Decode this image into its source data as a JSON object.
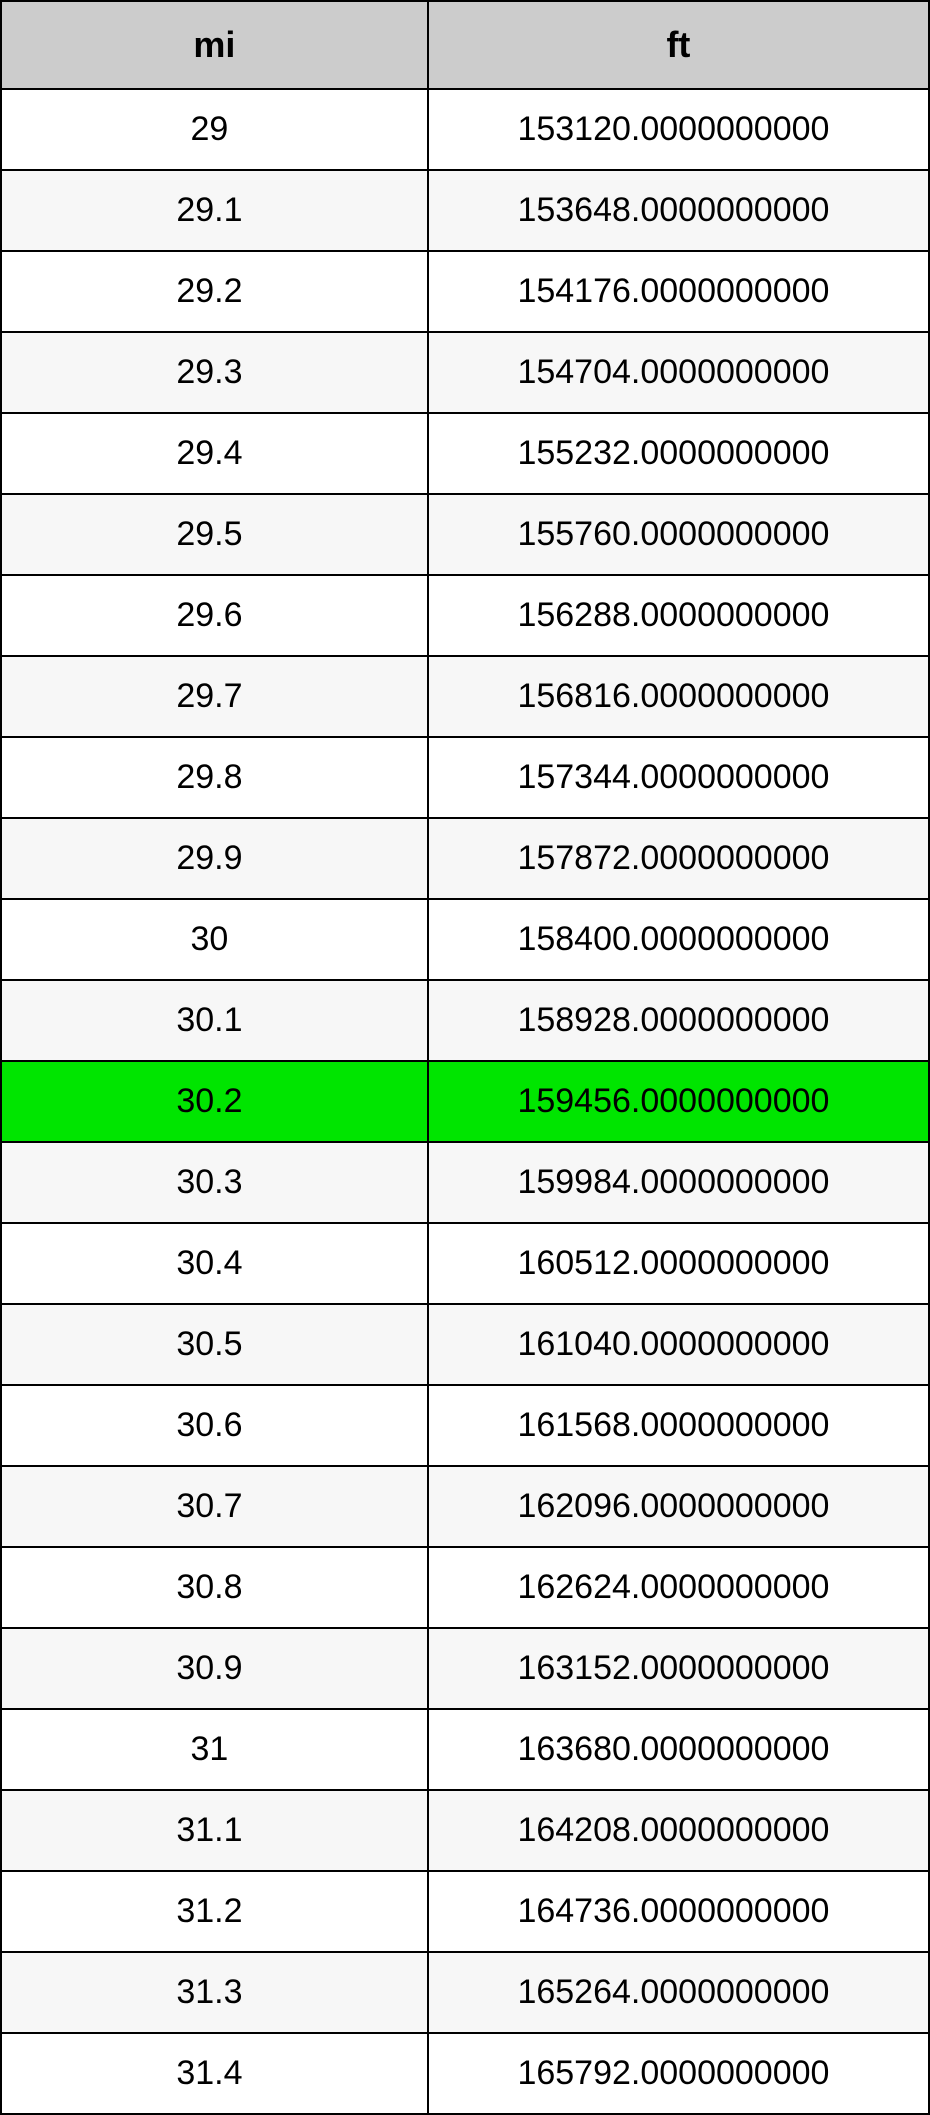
{
  "table": {
    "columns": [
      "mi",
      "ft"
    ],
    "highlight_index": 12,
    "highlight_color": "#00e500",
    "header_bg": "#cccccc",
    "row_even_bg": "#ffffff",
    "row_odd_bg": "#f7f7f7",
    "border_color": "#000000",
    "text_color": "#000000",
    "header_fontsize": 36,
    "cell_fontsize": 34,
    "rows": [
      {
        "mi": "29",
        "ft": "153120.0000000000"
      },
      {
        "mi": "29.1",
        "ft": "153648.0000000000"
      },
      {
        "mi": "29.2",
        "ft": "154176.0000000000"
      },
      {
        "mi": "29.3",
        "ft": "154704.0000000000"
      },
      {
        "mi": "29.4",
        "ft": "155232.0000000000"
      },
      {
        "mi": "29.5",
        "ft": "155760.0000000000"
      },
      {
        "mi": "29.6",
        "ft": "156288.0000000000"
      },
      {
        "mi": "29.7",
        "ft": "156816.0000000000"
      },
      {
        "mi": "29.8",
        "ft": "157344.0000000000"
      },
      {
        "mi": "29.9",
        "ft": "157872.0000000000"
      },
      {
        "mi": "30",
        "ft": "158400.0000000000"
      },
      {
        "mi": "30.1",
        "ft": "158928.0000000000"
      },
      {
        "mi": "30.2",
        "ft": "159456.0000000000"
      },
      {
        "mi": "30.3",
        "ft": "159984.0000000000"
      },
      {
        "mi": "30.4",
        "ft": "160512.0000000000"
      },
      {
        "mi": "30.5",
        "ft": "161040.0000000000"
      },
      {
        "mi": "30.6",
        "ft": "161568.0000000000"
      },
      {
        "mi": "30.7",
        "ft": "162096.0000000000"
      },
      {
        "mi": "30.8",
        "ft": "162624.0000000000"
      },
      {
        "mi": "30.9",
        "ft": "163152.0000000000"
      },
      {
        "mi": "31",
        "ft": "163680.0000000000"
      },
      {
        "mi": "31.1",
        "ft": "164208.0000000000"
      },
      {
        "mi": "31.2",
        "ft": "164736.0000000000"
      },
      {
        "mi": "31.3",
        "ft": "165264.0000000000"
      },
      {
        "mi": "31.4",
        "ft": "165792.0000000000"
      }
    ]
  }
}
